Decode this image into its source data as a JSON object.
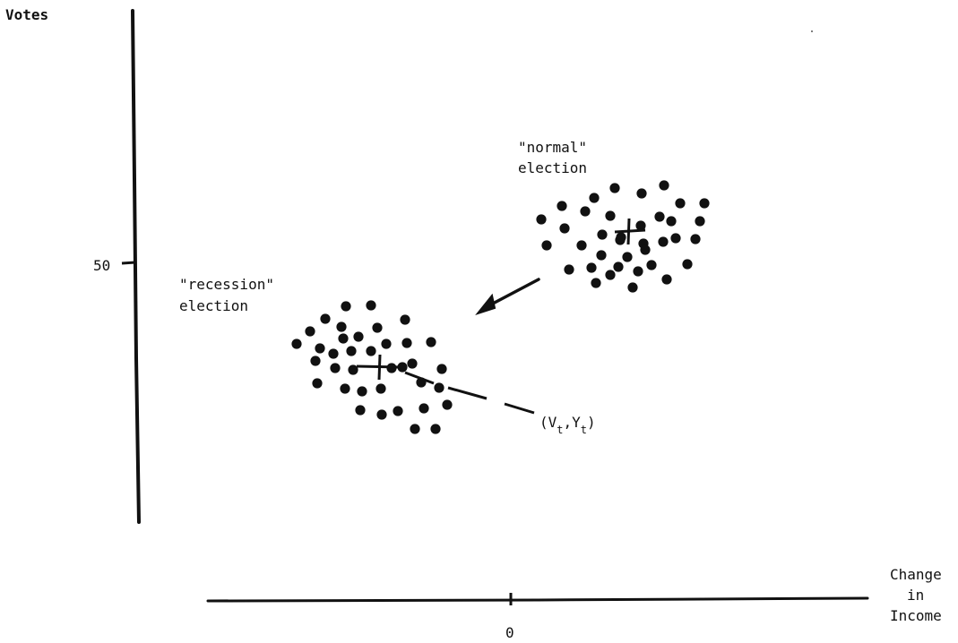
{
  "y_axis": {
    "label": "Votes",
    "tick_label": "50"
  },
  "x_axis": {
    "label_lines": [
      "Change",
      "in",
      "Income"
    ],
    "tick_label": "0"
  },
  "clusters": {
    "normal": {
      "label_lines": [
        "\"normal\"",
        "election"
      ]
    },
    "recession": {
      "label_lines": [
        "\"recession\"",
        "election"
      ]
    }
  },
  "point_label": {
    "open": "(V",
    "var1": "t",
    "sep": ",Y",
    "var2": "t",
    "close": ")"
  },
  "colors": {
    "ink": "#111111",
    "background": "#ffffff"
  }
}
